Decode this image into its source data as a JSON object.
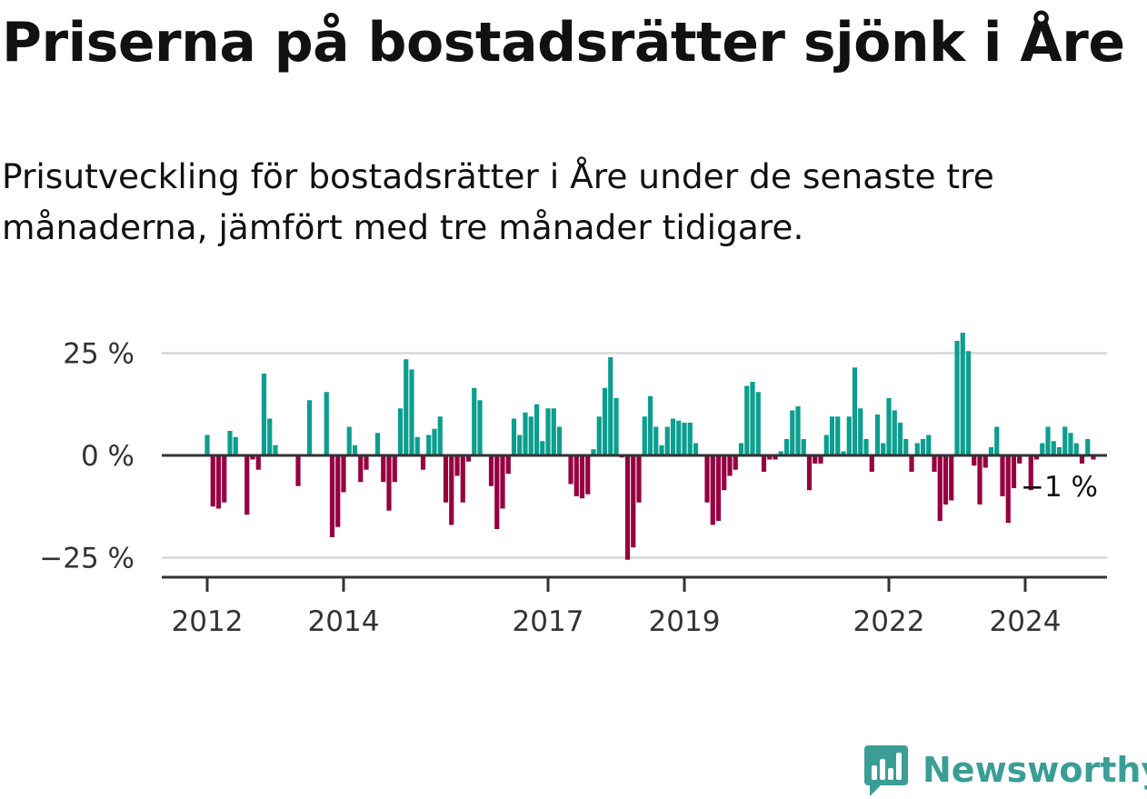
{
  "title": "Priserna på bostadsrätter sjönk i Åre",
  "subtitle": "Prisutveckling för bostadsrätter i Åre under de senaste tre månaderna, jämfört med tre månader tidigare.",
  "brand": {
    "name": "Newsworthy",
    "icon": "newsworthy-logo-icon",
    "color": "#3a9e96"
  },
  "colors": {
    "positive": "#0c9e8e",
    "negative": "#960040",
    "axis": "#333333",
    "grid": "#dddddd"
  },
  "chart_data": {
    "type": "bar",
    "title": "Priserna på bostadsrätter sjönk i Åre",
    "ylim": [
      -30,
      30
    ],
    "yticks": [
      -25,
      0,
      25
    ],
    "ytick_labels": [
      "−25 %",
      "0 %",
      "25 %"
    ],
    "grid": true,
    "start": "2012-01",
    "frequency": "monthly",
    "xtick_labels": [
      "2012",
      "2014",
      "2017",
      "2019",
      "2022",
      "2024"
    ],
    "xtick_dates": [
      "2012-01",
      "2014-01",
      "2017-01",
      "2019-01",
      "2022-01",
      "2024-01"
    ],
    "end_label": "−1 %",
    "values": [
      5,
      -12.5,
      -13,
      -11.5,
      6,
      4.5,
      0,
      -14.5,
      -1,
      -3.5,
      20,
      9,
      2.5,
      0,
      0,
      0,
      -7.5,
      0,
      13.5,
      0,
      0,
      15.5,
      -20,
      -17.5,
      -9,
      7,
      2.5,
      -6.5,
      -3.5,
      0,
      5.5,
      -6.5,
      -13.5,
      -6.5,
      11.5,
      23.5,
      21,
      4.5,
      -3.5,
      5,
      6.5,
      9.5,
      -11.5,
      -17,
      -5,
      -11.5,
      -1.5,
      16.5,
      13.5,
      0,
      -7.5,
      -18,
      -13,
      -4.5,
      9,
      5,
      10.5,
      9.5,
      12.5,
      3.5,
      11.5,
      11.5,
      7,
      0,
      -7,
      -10,
      -10.5,
      -9.5,
      1.5,
      9.5,
      16.5,
      24,
      14,
      -0.5,
      -25.5,
      -22.5,
      -11.5,
      9.5,
      14.5,
      7,
      2.5,
      7,
      9,
      8.5,
      8,
      8,
      3,
      0,
      -11.5,
      -17,
      -16,
      -8.5,
      -5,
      -3.5,
      3,
      17,
      18,
      15.5,
      -4,
      -1,
      -1,
      1,
      4,
      11,
      12,
      4,
      -8.5,
      -2,
      -2,
      5,
      9.5,
      9.5,
      1,
      9.5,
      21.5,
      11.5,
      4,
      -4,
      10,
      3,
      14,
      11,
      8,
      4,
      -4,
      3,
      4,
      5,
      -4,
      -16,
      -12,
      -11,
      28,
      30,
      25.5,
      -2.5,
      -12,
      -3,
      2,
      7,
      -10,
      -16.5,
      -8,
      -2,
      0,
      -8.5,
      -1,
      3,
      7,
      3.5,
      2,
      7,
      5.5,
      3,
      -2,
      4,
      -1
    ]
  }
}
